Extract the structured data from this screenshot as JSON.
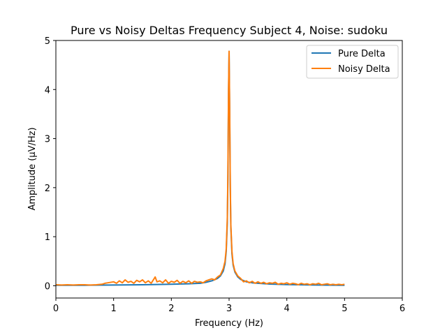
{
  "chart_data": {
    "type": "line",
    "title": "Pure vs Noisy Deltas Frequency Subject 4, Noise: sudoku",
    "xlabel": "Frequency (Hz)",
    "ylabel": "Amplitude (μV/Hz)",
    "xlim": [
      0,
      6
    ],
    "ylim": [
      -0.25,
      5.0
    ],
    "xticks": [
      "0",
      "1",
      "2",
      "3",
      "4",
      "5",
      "6"
    ],
    "yticks": [
      "0",
      "1",
      "2",
      "3",
      "4",
      "5"
    ],
    "grid": false,
    "legend": "top-right",
    "series": [
      {
        "name": "Pure Delta",
        "color": "#1f77b4",
        "x": [
          0,
          0.5,
          1.0,
          1.5,
          2.0,
          2.3,
          2.5,
          2.6,
          2.7,
          2.8,
          2.85,
          2.9,
          2.93,
          2.95,
          2.97,
          2.98,
          2.99,
          3.0,
          3.01,
          3.02,
          3.03,
          3.05,
          3.07,
          3.1,
          3.15,
          3.2,
          3.3,
          3.4,
          3.5,
          3.7,
          4.0,
          4.5,
          5.0
        ],
        "y": [
          0.01,
          0.01,
          0.015,
          0.02,
          0.03,
          0.04,
          0.05,
          0.07,
          0.1,
          0.15,
          0.2,
          0.3,
          0.45,
          0.7,
          1.3,
          2.2,
          3.9,
          4.78,
          3.6,
          2.0,
          1.2,
          0.65,
          0.42,
          0.28,
          0.18,
          0.13,
          0.08,
          0.06,
          0.05,
          0.035,
          0.025,
          0.015,
          0.01
        ]
      },
      {
        "name": "Noisy Delta",
        "color": "#ff7f0e",
        "x": [
          0,
          0.1,
          0.2,
          0.3,
          0.4,
          0.5,
          0.6,
          0.7,
          0.8,
          0.85,
          0.9,
          1.0,
          1.05,
          1.1,
          1.15,
          1.2,
          1.25,
          1.3,
          1.35,
          1.4,
          1.45,
          1.5,
          1.55,
          1.6,
          1.65,
          1.7,
          1.72,
          1.75,
          1.8,
          1.85,
          1.9,
          1.95,
          2.0,
          2.05,
          2.1,
          2.15,
          2.2,
          2.25,
          2.3,
          2.35,
          2.4,
          2.45,
          2.5,
          2.55,
          2.6,
          2.65,
          2.7,
          2.75,
          2.8,
          2.85,
          2.9,
          2.93,
          2.95,
          2.97,
          2.98,
          2.99,
          3.0,
          3.01,
          3.02,
          3.03,
          3.05,
          3.07,
          3.1,
          3.15,
          3.2,
          3.25,
          3.3,
          3.35,
          3.4,
          3.45,
          3.5,
          3.55,
          3.6,
          3.65,
          3.7,
          3.75,
          3.8,
          3.85,
          3.9,
          3.95,
          4.0,
          4.05,
          4.1,
          4.15,
          4.2,
          4.25,
          4.3,
          4.35,
          4.4,
          4.45,
          4.5,
          4.55,
          4.6,
          4.65,
          4.7,
          4.75,
          4.8,
          4.85,
          4.9,
          4.95,
          5.0
        ],
        "y": [
          0.02,
          0.015,
          0.02,
          0.015,
          0.02,
          0.02,
          0.015,
          0.02,
          0.03,
          0.05,
          0.06,
          0.08,
          0.05,
          0.1,
          0.06,
          0.12,
          0.07,
          0.09,
          0.05,
          0.11,
          0.08,
          0.12,
          0.06,
          0.1,
          0.05,
          0.14,
          0.18,
          0.08,
          0.1,
          0.06,
          0.12,
          0.05,
          0.09,
          0.07,
          0.11,
          0.05,
          0.09,
          0.06,
          0.1,
          0.05,
          0.09,
          0.07,
          0.08,
          0.06,
          0.1,
          0.12,
          0.14,
          0.12,
          0.18,
          0.22,
          0.35,
          0.5,
          0.75,
          1.4,
          2.3,
          4.0,
          4.78,
          3.7,
          2.1,
          1.25,
          0.7,
          0.45,
          0.3,
          0.2,
          0.15,
          0.08,
          0.1,
          0.06,
          0.09,
          0.05,
          0.08,
          0.05,
          0.07,
          0.04,
          0.06,
          0.05,
          0.07,
          0.03,
          0.05,
          0.04,
          0.06,
          0.03,
          0.05,
          0.04,
          0.02,
          0.05,
          0.03,
          0.04,
          0.02,
          0.04,
          0.03,
          0.05,
          0.02,
          0.03,
          0.04,
          0.02,
          0.03,
          0.02,
          0.03,
          0.02,
          0.03
        ]
      }
    ]
  }
}
